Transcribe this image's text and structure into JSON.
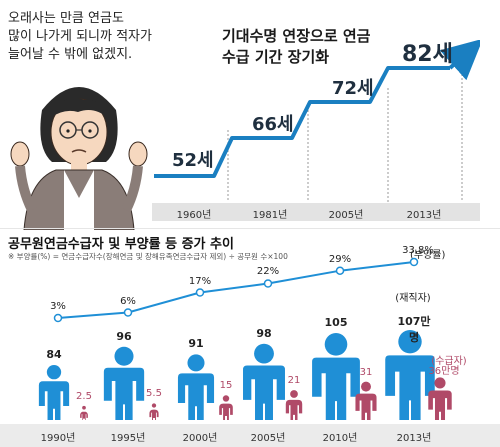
{
  "top": {
    "quote": "오래사는 만큼 연금도\n많이 나가게 되니까 적자가\n늘어날 수 밖에 없겠지.",
    "headline": "기대수명 연장으로 연금\n수급 기간 장기화",
    "steps": [
      {
        "year": "1960년",
        "value": "52세"
      },
      {
        "year": "1981년",
        "value": "66세"
      },
      {
        "year": "2005년",
        "value": "72세"
      },
      {
        "year": "2013년",
        "value": "82세"
      }
    ],
    "colors": {
      "line": "#1a7fc1",
      "text": "#1f2f3f"
    }
  },
  "bottom": {
    "title": "공무원연금수급자 및 부양률 등 증가 추이",
    "note": "※ 부양률(%) = 연금수급자수(장해연금 및 장해유족연금수급자 제외) ÷ 공무원 수×100",
    "legend_ratio": "(부양률)",
    "legend_workers": "(재직자)",
    "legend_pension": "(수급자)"
  },
  "chart_data": {
    "type": "bar",
    "categories": [
      "1990년",
      "1995년",
      "2000년",
      "2005년",
      "2010년",
      "2013년"
    ],
    "series": [
      {
        "name": "부양률",
        "values": [
          3,
          6,
          17,
          22,
          29,
          33.8
        ],
        "labels": [
          "3%",
          "6%",
          "17%",
          "22%",
          "29%",
          "33.8%"
        ]
      },
      {
        "name": "재직자",
        "values": [
          84,
          96,
          91,
          98,
          105,
          107
        ],
        "labels": [
          "84",
          "96",
          "91",
          "98",
          "105",
          "107만명"
        ]
      },
      {
        "name": "수급자",
        "values": [
          2.5,
          5.5,
          15,
          21,
          31,
          36
        ],
        "labels": [
          "2.5",
          "5.5",
          "15",
          "21",
          "31",
          "36만명"
        ]
      }
    ],
    "colors": {
      "workers": "#1f8fd6",
      "pension": "#b04a68",
      "ratio_line": "#1f8fd6"
    }
  }
}
